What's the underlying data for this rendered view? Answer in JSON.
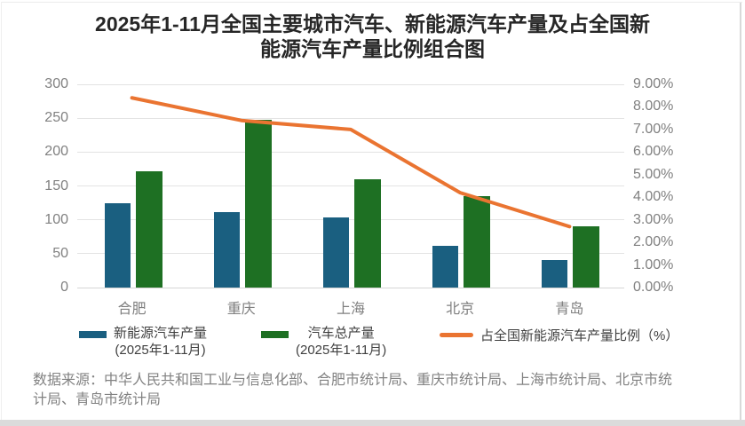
{
  "title": "2025年1-11月全国主要城市汽车、新能源汽车产量及占全国新\n能源汽车产量比例组合图",
  "source": "数据来源：中华人民共和国工业与信息化部、合肥市统计局、重庆市统计局、上海市统计局、北京市统\n计局、青岛市统计局",
  "colors": {
    "bar_nev": "#1A5F80",
    "bar_total": "#1E7023",
    "line_share": "#EA7431",
    "grid": "#E3E3E3",
    "axis_text": "#808080",
    "title_text": "#262626",
    "legend_text": "#404040",
    "source_text": "#828282",
    "border": "#D9D9D9"
  },
  "chart_data": {
    "type": "bar",
    "subtype": "combo-bar-line-dual-axis",
    "title": "2025年1-11月全国主要城市汽车、新能源汽车产量及占全国新能源汽车产量比例组合图",
    "categories": [
      "合肥",
      "重庆",
      "上海",
      "北京",
      "青岛"
    ],
    "series": [
      {
        "name": "新能源汽车产量\n(2025年1-11月)",
        "type": "bar",
        "axis": "left",
        "color": "#1A5F80",
        "values": [
          124,
          111,
          104,
          62,
          40
        ]
      },
      {
        "name": "汽车总产量\n(2025年1-11月)",
        "type": "bar",
        "axis": "left",
        "color": "#1E7023",
        "values": [
          172,
          247,
          160,
          135,
          90
        ]
      },
      {
        "name": "占全国新能源汽车产量比例（%）",
        "type": "line",
        "axis": "right",
        "color": "#EA7431",
        "values": [
          8.4,
          7.4,
          7.0,
          4.2,
          2.7
        ]
      }
    ],
    "left_axis": {
      "min": 0,
      "max": 300,
      "step": 50,
      "ticks": [
        "0",
        "50",
        "100",
        "150",
        "200",
        "250",
        "300"
      ]
    },
    "right_axis": {
      "min": 0,
      "max": 9,
      "step": 1,
      "ticks": [
        "0.00%",
        "1.00%",
        "2.00%",
        "3.00%",
        "4.00%",
        "5.00%",
        "6.00%",
        "7.00%",
        "8.00%",
        "9.00%"
      ]
    },
    "grid": true,
    "legend_position": "bottom",
    "xlabel": "",
    "ylabel": ""
  }
}
